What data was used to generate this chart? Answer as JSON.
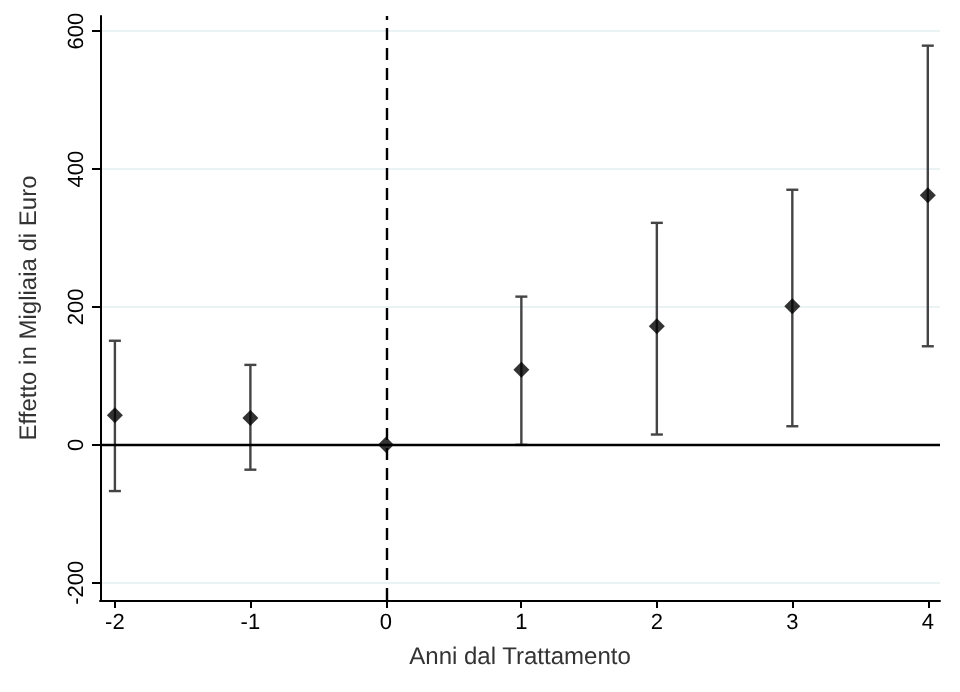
{
  "chart_data": {
    "type": "scatter",
    "xlabel": "Anni dal Trattamento",
    "ylabel": "Effetto in Migliaia di Euro",
    "x": [
      -2,
      -1,
      0,
      1,
      2,
      3,
      4
    ],
    "values": [
      43,
      39,
      0,
      109,
      172,
      201,
      362
    ],
    "errors": [
      [
        -67,
        151
      ],
      [
        -36,
        116
      ],
      null,
      [
        0,
        215
      ],
      [
        15,
        322
      ],
      [
        27,
        370
      ],
      [
        143,
        579
      ]
    ],
    "color": "#000000",
    "marker": "diamond",
    "xlim": [
      -2.11,
      4.09
    ],
    "xticks": [
      -2,
      -1,
      0,
      1,
      2,
      3,
      4
    ],
    "ylim": [
      -225,
      622
    ],
    "yticks": [
      -200,
      0,
      200,
      400,
      600
    ],
    "grid": "y",
    "ref_lines": [
      {
        "axis": "y",
        "value": 0,
        "color": "#000000",
        "line_style": "solid"
      },
      {
        "axis": "x",
        "value": 0,
        "color": "#000000",
        "line_style": "dashed"
      }
    ]
  }
}
